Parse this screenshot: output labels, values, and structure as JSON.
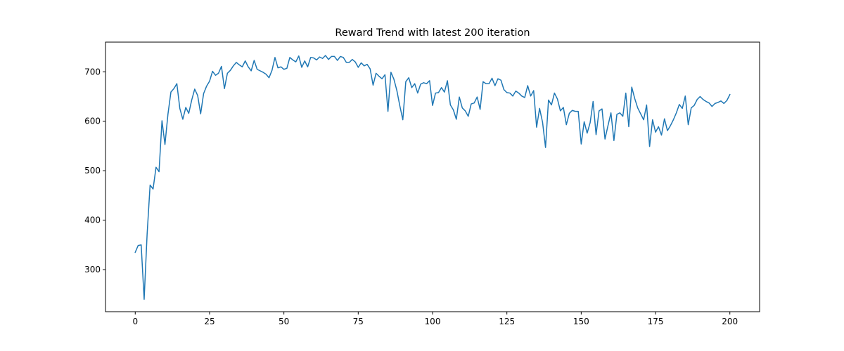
{
  "chart_data": {
    "type": "line",
    "title": "Reward Trend with latest 200 iteration",
    "xlabel": "",
    "ylabel": "",
    "xlim": [
      -10,
      210
    ],
    "ylim": [
      215,
      760
    ],
    "xticks": [
      0,
      25,
      50,
      75,
      100,
      125,
      150,
      175,
      200
    ],
    "yticks": [
      300,
      400,
      500,
      600,
      700
    ],
    "grid": false,
    "series": [
      {
        "color": "#1f77b4",
        "x": [
          0,
          1,
          2,
          3,
          4,
          5,
          6,
          7,
          8,
          9,
          10,
          11,
          12,
          13,
          14,
          15,
          16,
          17,
          18,
          19,
          20,
          21,
          22,
          23,
          24,
          25,
          26,
          27,
          28,
          29,
          30,
          31,
          32,
          33,
          34,
          35,
          36,
          37,
          38,
          39,
          40,
          41,
          42,
          43,
          44,
          45,
          46,
          47,
          48,
          49,
          50,
          51,
          52,
          53,
          54,
          55,
          56,
          57,
          58,
          59,
          60,
          61,
          62,
          63,
          64,
          65,
          66,
          67,
          68,
          69,
          70,
          71,
          72,
          73,
          74,
          75,
          76,
          77,
          78,
          79,
          80,
          81,
          82,
          83,
          84,
          85,
          86,
          87,
          88,
          89,
          90,
          91,
          92,
          93,
          94,
          95,
          96,
          97,
          98,
          99,
          100,
          101,
          102,
          103,
          104,
          105,
          106,
          107,
          108,
          109,
          110,
          111,
          112,
          113,
          114,
          115,
          116,
          117,
          118,
          119,
          120,
          121,
          122,
          123,
          124,
          125,
          126,
          127,
          128,
          129,
          130,
          131,
          132,
          133,
          134,
          135,
          136,
          137,
          138,
          139,
          140,
          141,
          142,
          143,
          144,
          145,
          146,
          147,
          148,
          149,
          150,
          151,
          152,
          153,
          154,
          155,
          156,
          157,
          158,
          159,
          160,
          161,
          162,
          163,
          164,
          165,
          166,
          167,
          168,
          169,
          170,
          171,
          172,
          173,
          174,
          175,
          176,
          177,
          178,
          179,
          180,
          181,
          182,
          183,
          184,
          185,
          186,
          187,
          188,
          189,
          190,
          191,
          192,
          193,
          194,
          195,
          196,
          197,
          198,
          199,
          200
        ],
        "values": [
          335,
          349,
          350,
          240,
          372,
          471,
          463,
          507,
          498,
          601,
          553,
          614,
          659,
          666,
          676,
          626,
          604,
          628,
          616,
          643,
          665,
          652,
          615,
          656,
          671,
          681,
          701,
          693,
          697,
          711,
          666,
          697,
          703,
          712,
          719,
          714,
          710,
          722,
          710,
          702,
          723,
          705,
          702,
          699,
          695,
          688,
          703,
          729,
          708,
          710,
          705,
          707,
          729,
          724,
          720,
          732,
          709,
          722,
          710,
          729,
          728,
          724,
          730,
          727,
          733,
          725,
          731,
          731,
          723,
          731,
          729,
          719,
          719,
          725,
          720,
          709,
          718,
          712,
          715,
          706,
          673,
          697,
          691,
          686,
          694,
          620,
          699,
          685,
          662,
          631,
          603,
          680,
          688,
          668,
          676,
          657,
          675,
          678,
          676,
          682,
          632,
          657,
          658,
          668,
          659,
          682,
          633,
          623,
          604,
          649,
          627,
          621,
          610,
          635,
          637,
          649,
          624,
          680,
          676,
          676,
          687,
          672,
          686,
          683,
          664,
          658,
          657,
          651,
          661,
          657,
          651,
          648,
          672,
          651,
          662,
          588,
          626,
          598,
          547,
          643,
          633,
          657,
          645,
          621,
          628,
          593,
          616,
          622,
          620,
          620,
          554,
          599,
          576,
          597,
          640,
          573,
          621,
          625,
          564,
          591,
          617,
          561,
          614,
          617,
          610,
          657,
          589,
          669,
          646,
          627,
          615,
          603,
          633,
          549,
          603,
          578,
          589,
          572,
          605,
          581,
          591,
          603,
          617,
          634,
          626,
          651,
          593,
          627,
          632,
          644,
          650,
          644,
          640,
          637,
          630,
          636,
          638,
          641,
          636,
          642,
          654
        ]
      }
    ]
  }
}
